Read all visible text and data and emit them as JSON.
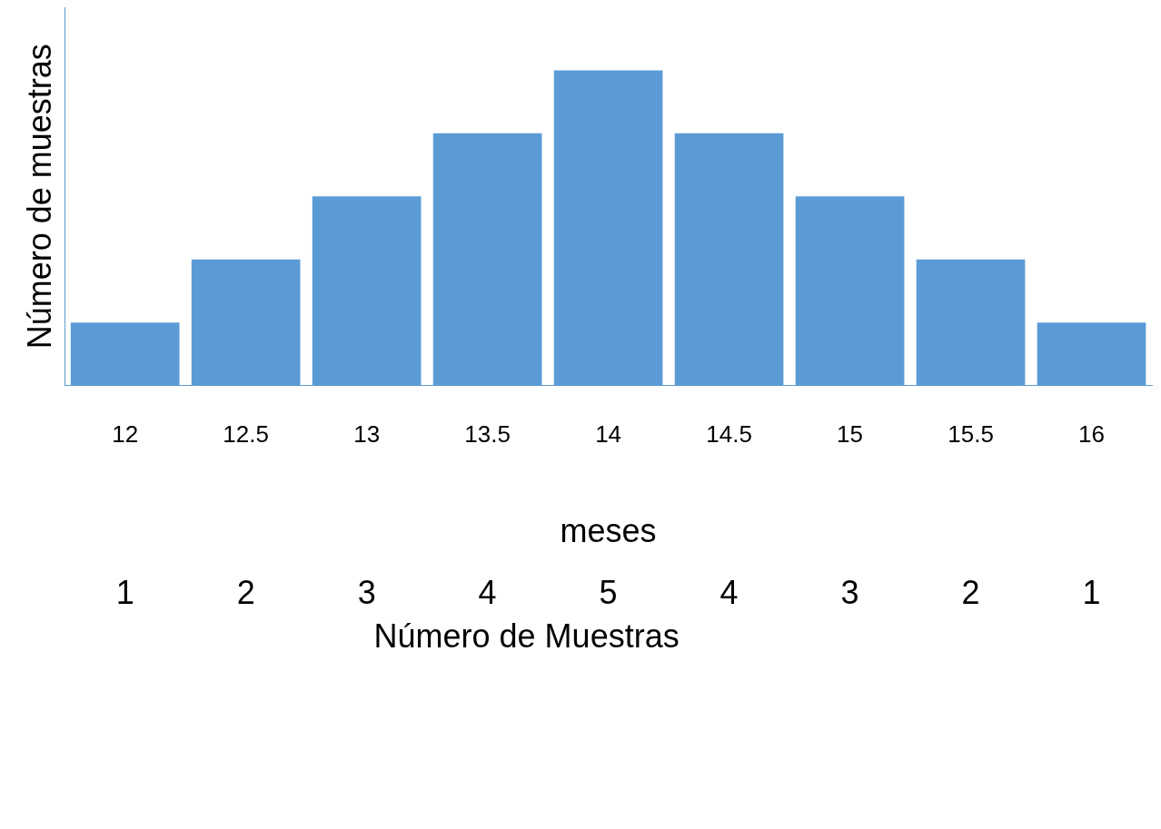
{
  "chart_data": {
    "type": "bar",
    "xlabel": "meses",
    "ylabel": "Número de muestras",
    "categories": [
      "12",
      "12.5",
      "13",
      "13.5",
      "14",
      "14.5",
      "15",
      "15.5",
      "16"
    ],
    "values": [
      1,
      2,
      3,
      4,
      5,
      4,
      3,
      2,
      1
    ],
    "color": "#5b9bd5",
    "tick_labels": "x",
    "grid": false,
    "legend": false,
    "data_labels": true,
    "annotations": [
      "Número de Muestras"
    ]
  }
}
